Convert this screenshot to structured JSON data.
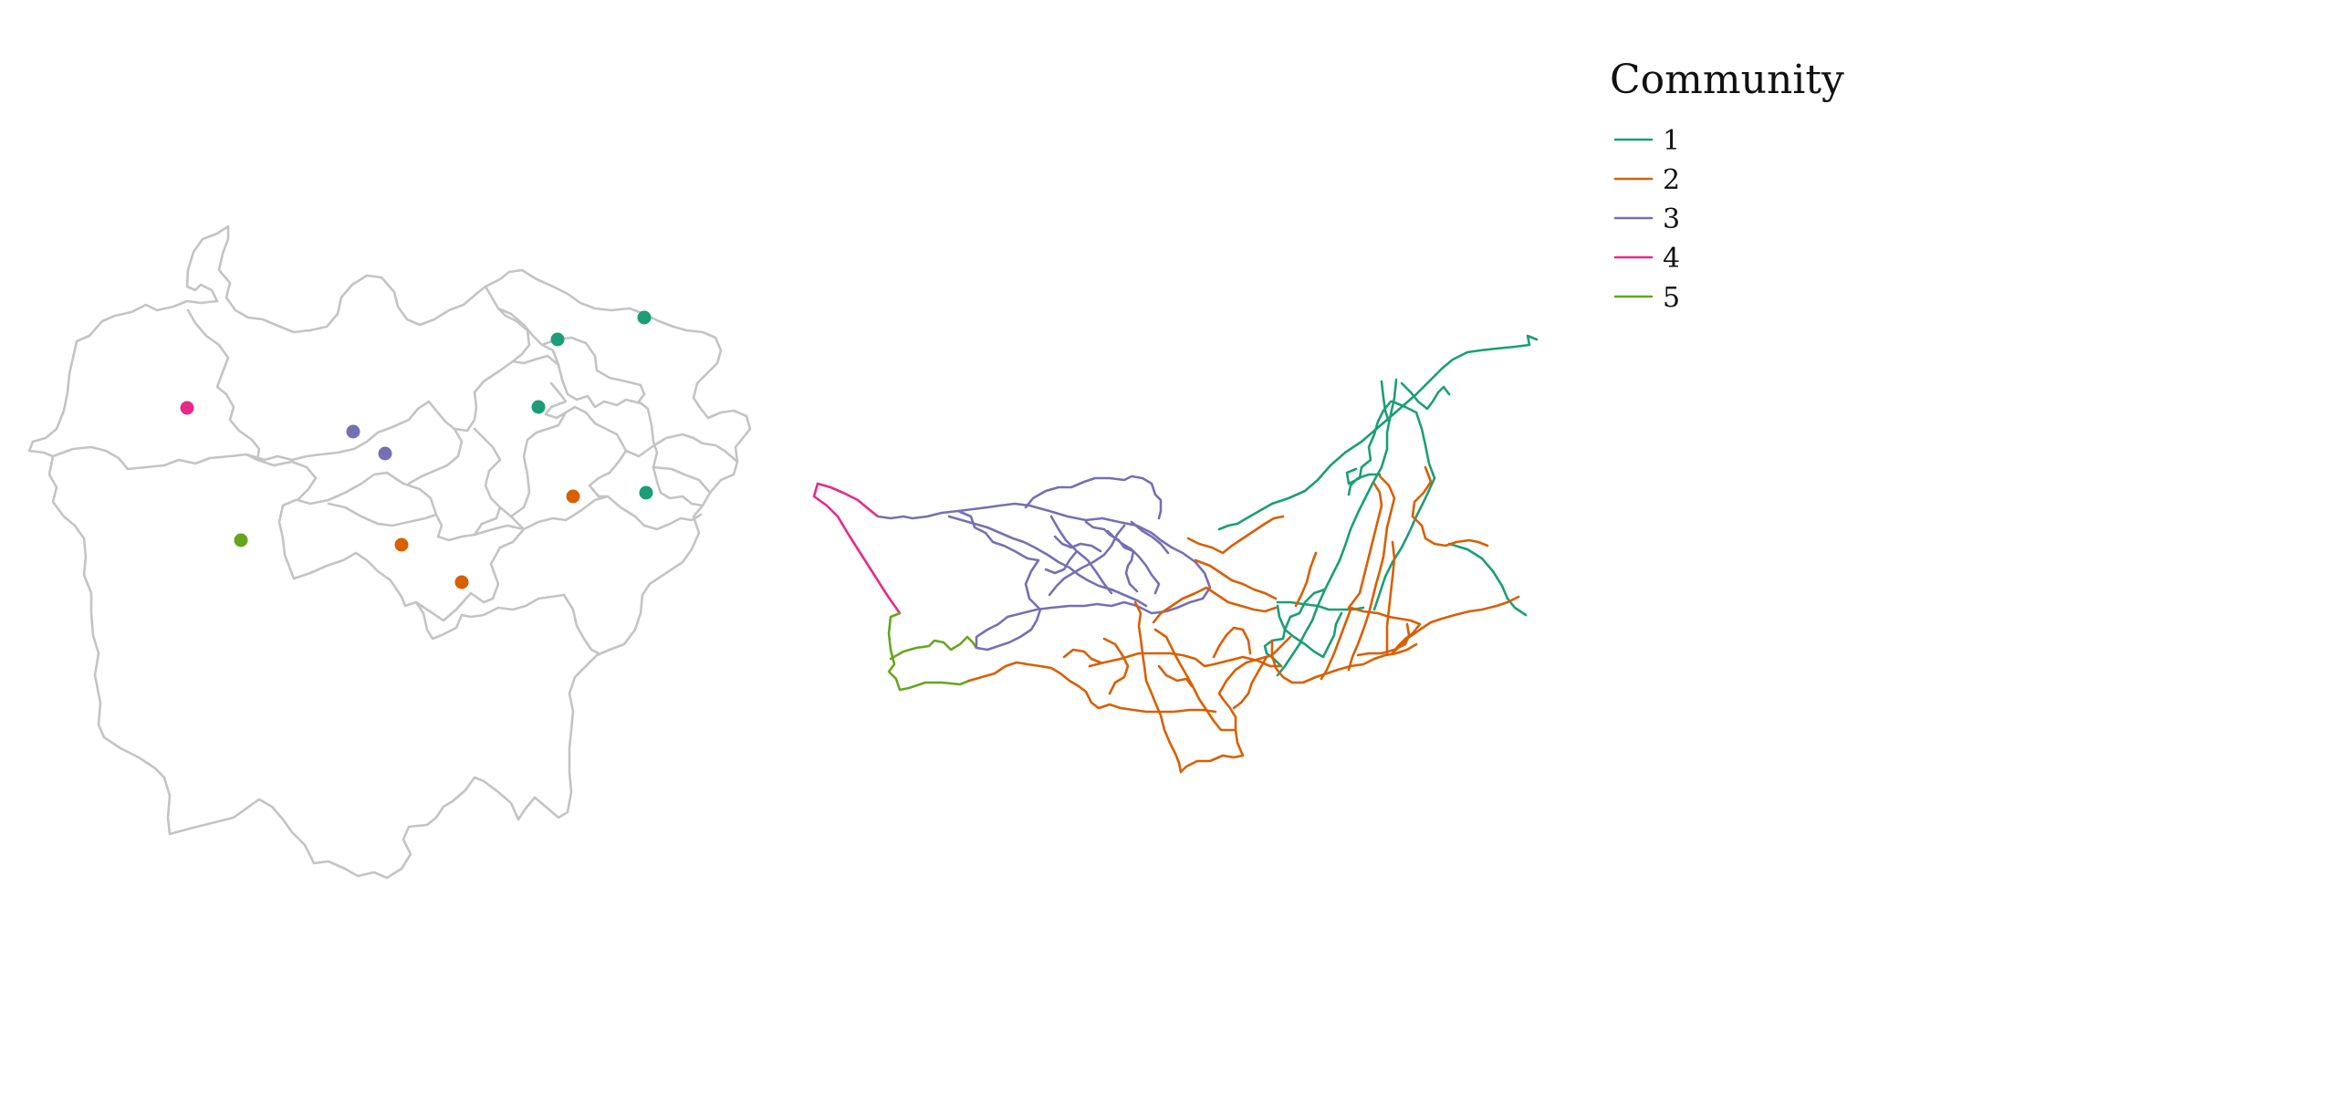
{
  "legend": {
    "title": "Community",
    "items": [
      {
        "label": "1",
        "color": "#1b9e77"
      },
      {
        "label": "2",
        "color": "#d95f02"
      },
      {
        "label": "3",
        "color": "#7570b3"
      },
      {
        "label": "4",
        "color": "#e7298a"
      },
      {
        "label": "5",
        "color": "#66a61e"
      }
    ]
  },
  "community_colors": {
    "1": "#1b9e77",
    "2": "#d95f02",
    "3": "#7570b3",
    "4": "#e7298a",
    "5": "#66a61e"
  },
  "boundary_color": "#c4c4c4",
  "district_centroids": [
    {
      "community": 4
    },
    {
      "community": 3
    },
    {
      "community": 3
    },
    {
      "community": 5
    },
    {
      "community": 2
    },
    {
      "community": 2
    },
    {
      "community": 1
    },
    {
      "community": 1
    },
    {
      "community": 1
    },
    {
      "community": 2
    },
    {
      "community": 1
    }
  ]
}
